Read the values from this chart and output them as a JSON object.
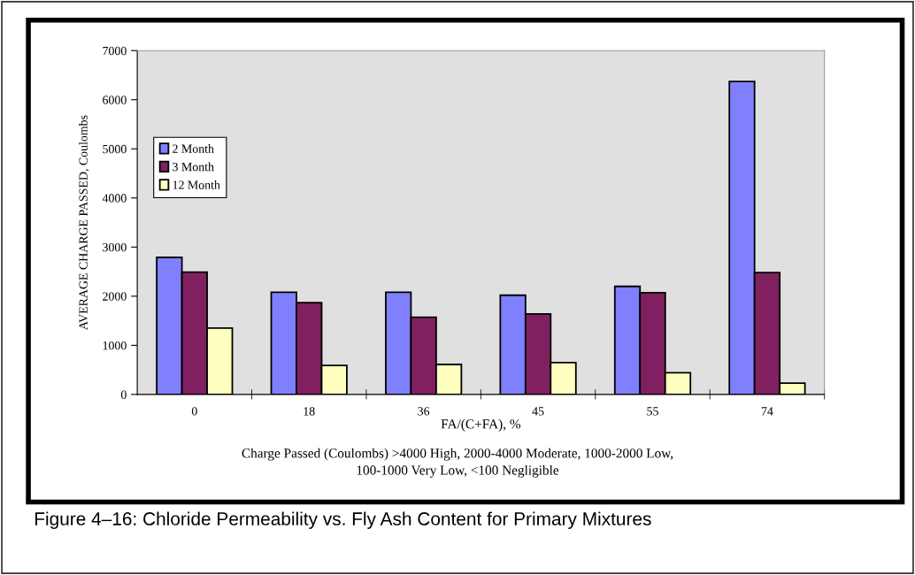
{
  "chart_data": {
    "type": "bar",
    "title": "Figure 4–16: Chloride Permeability vs. Fly Ash Content for Primary Mixtures",
    "xlabel": "FA/(C+FA), %",
    "ylabel": "AVERAGE CHARGE PASSED, Coulombs",
    "annotations": [
      "Charge Passed (Coulombs) >4000 High, 2000-4000 Moderate, 1000-2000 Low,\n100-1000 Very Low, <100 Negligible"
    ],
    "categories": [
      "0",
      "18",
      "36",
      "45",
      "55",
      "74"
    ],
    "series": [
      {
        "name": "2 Month",
        "color": "#8080ff",
        "values": [
          2790,
          2080,
          2080,
          2020,
          2200,
          6370
        ]
      },
      {
        "name": "3 Month",
        "color": "#802060",
        "values": [
          2490,
          1870,
          1570,
          1640,
          2070,
          2480
        ]
      },
      {
        "name": "12 Month",
        "color": "#ffffc0",
        "values": [
          1350,
          590,
          610,
          650,
          440,
          230
        ]
      }
    ],
    "ylim": [
      0,
      7000
    ],
    "yticks": [
      0,
      1000,
      2000,
      3000,
      4000,
      5000,
      6000,
      7000
    ],
    "grid": false,
    "legend": "left"
  }
}
